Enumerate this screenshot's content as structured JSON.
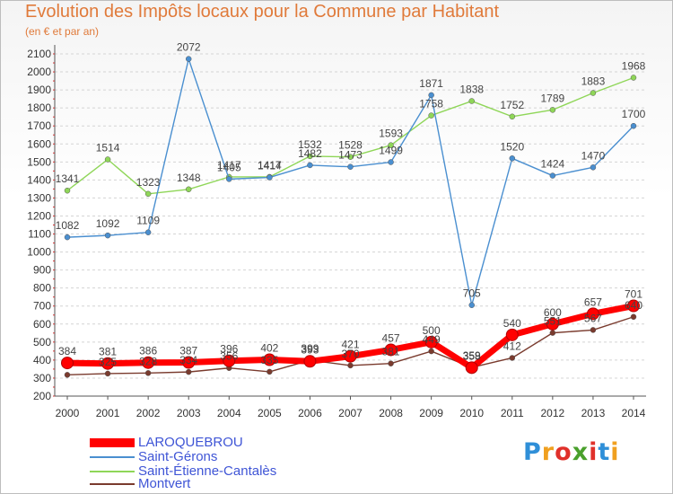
{
  "chart_data": {
    "type": "line",
    "title": "Evolution des Impôts locaux pour la Commune par Habitant",
    "subtitle": "(en € et par an)",
    "xlabel": "",
    "ylabel": "",
    "x": [
      "2000",
      "2001",
      "2002",
      "2003",
      "2004",
      "2005",
      "2006",
      "2007",
      "2008",
      "2009",
      "2010",
      "2011",
      "2012",
      "2013",
      "2014"
    ],
    "ylim": [
      200,
      2100
    ],
    "yticks": [
      "200",
      "300",
      "400",
      "500",
      "600",
      "700",
      "800",
      "900",
      "1000",
      "1100",
      "1200",
      "1300",
      "1400",
      "1500",
      "1600",
      "1700",
      "1800",
      "1900",
      "2000",
      "2100"
    ],
    "grid": "horizontal dashed",
    "legend_position": "bottom-left",
    "series": [
      {
        "name": "LAROQUEBROU",
        "color": "#ff0000",
        "values": [
          384,
          381,
          386,
          387,
          396,
          402,
          393,
          421,
          457,
          500,
          358,
          540,
          600,
          657,
          701
        ],
        "labels": [
          "384",
          "381",
          "386",
          "387",
          "396",
          "402",
          "393",
          "421",
          "457",
          "500",
          "358",
          "540",
          "600",
          "657",
          "701"
        ]
      },
      {
        "name": "Saint-Gérons",
        "color": "#4a8fd0",
        "values": [
          1082,
          1092,
          1109,
          2072,
          1405,
          1414,
          1482,
          1473,
          1499,
          1871,
          705,
          1520,
          1424,
          1470,
          1700
        ],
        "labels": [
          "1082",
          "1092",
          "1109",
          "2072",
          "1405",
          "1414",
          "1482",
          "1473",
          "1499",
          "1871",
          "705",
          "1520",
          "1424",
          "1470",
          "1700"
        ]
      },
      {
        "name": "Saint-Étienne-Cantalès",
        "color": "#8fd658",
        "values": [
          1341,
          1514,
          1323,
          1348,
          1417,
          1417,
          1532,
          1528,
          1593,
          1758,
          1838,
          1752,
          1789,
          1883,
          1968
        ],
        "labels": [
          "1341",
          "1514",
          "1323",
          "1348",
          "1417",
          "1417",
          "1532",
          "1528",
          "1593",
          "1758",
          "1838",
          "1752",
          "1789",
          "1883",
          "1968"
        ]
      },
      {
        "name": "Montvert",
        "color": "#7a3b2e",
        "values": [
          318,
          325,
          328,
          334,
          356,
          335,
          399,
          370,
          381,
          449,
          359,
          412,
          551,
          567,
          640
        ],
        "labels": [
          "",
          "325",
          "328",
          "334",
          "356",
          "335",
          "399",
          "370",
          "381",
          "449",
          "359",
          "412",
          "551",
          "567",
          "640"
        ]
      }
    ]
  },
  "legend": {
    "entries": [
      "LAROQUEBROU",
      "Saint-Gérons",
      "Saint-Étienne-Cantalès",
      "Montvert"
    ]
  },
  "brand": {
    "letters": [
      "P",
      "r",
      "o",
      "x",
      "i",
      "t",
      "i"
    ],
    "colors": [
      "#2f8fd8",
      "#f0a020",
      "#e0302a",
      "#4aa02c",
      "#e0302a",
      "#2f8fd8",
      "#f0a020"
    ]
  }
}
